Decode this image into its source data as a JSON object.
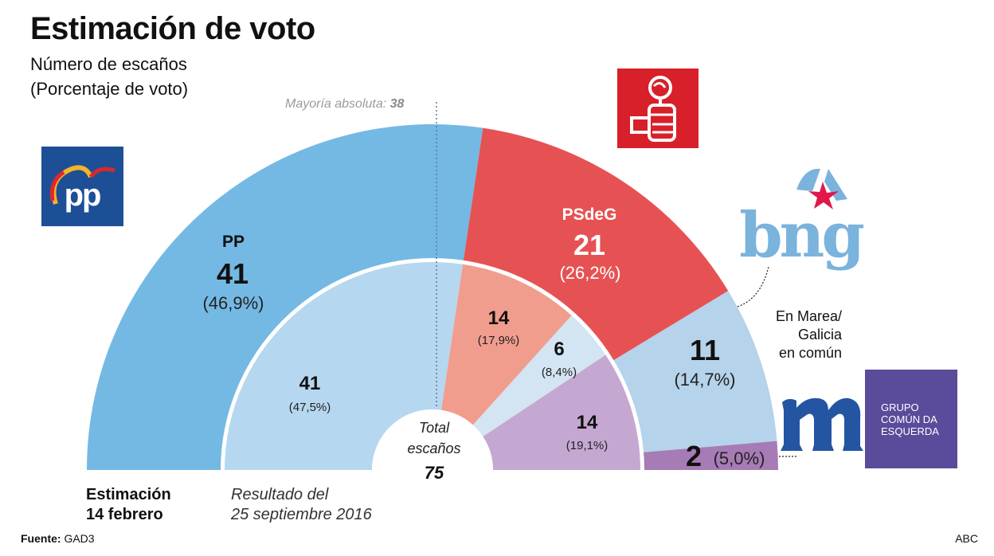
{
  "header": {
    "title": "Estimación de voto",
    "subtitle_line1": "Número de escaños",
    "subtitle_line2": "(Porcentaje de voto)"
  },
  "majority": {
    "label": "Mayoría absoluta:",
    "value": "38"
  },
  "center": {
    "label_line1": "Total",
    "label_line2": "escaños",
    "total": "75"
  },
  "footer": {
    "estimate_line1": "Estimación",
    "estimate_line2": "14 febrero",
    "previous_line1": "Resultado del",
    "previous_line2": "25 septiembre 2016",
    "source_label": "Fuente:",
    "source_value": "GAD3",
    "credit": "ABC"
  },
  "logos": {
    "pp": "PP logo",
    "psoe": "PSOE logo",
    "bng": "bng",
    "gce_line1": "GRUPO",
    "gce_line2": "COMÚN DA",
    "gce_line3": "ESQUERDA"
  },
  "marea_label": [
    "En Marea/",
    "Galicia",
    "en común"
  ],
  "chart_data": {
    "type": "pie",
    "subtype": "parliament-semicircle",
    "title": "Estimación de voto",
    "subtitle": "Número de escaños (Porcentaje de voto)",
    "total_seats": 75,
    "majority": 38,
    "series": [
      {
        "name": "Estimación 14 febrero",
        "ring": "outer",
        "segments": [
          {
            "party": "PP",
            "seats": 41,
            "pct": "46,9%",
            "color": "#74b9e4"
          },
          {
            "party": "PSdeG",
            "seats": 21,
            "pct": "26,2%",
            "color": "#e65253"
          },
          {
            "party": "BNG",
            "seats": 11,
            "pct": "14,7%",
            "color": "#b5d3ea"
          },
          {
            "party": "En Marea/Galicia en común",
            "seats": 2,
            "pct": "5,0%",
            "color": "#a77bb5"
          }
        ]
      },
      {
        "name": "Resultado del 25 septiembre 2016",
        "ring": "inner",
        "segments": [
          {
            "party": "PP",
            "seats": 41,
            "pct": "47,5%",
            "color": "#b5d7ef"
          },
          {
            "party": "PSdeG",
            "seats": 14,
            "pct": "17,9%",
            "color": "#f19d8e"
          },
          {
            "party": "BNG",
            "seats": 6,
            "pct": "8,4%",
            "color": "#d3e4f2"
          },
          {
            "party": "En Marea",
            "seats": 14,
            "pct": "19,1%",
            "color": "#c5a8d2"
          }
        ]
      }
    ]
  }
}
